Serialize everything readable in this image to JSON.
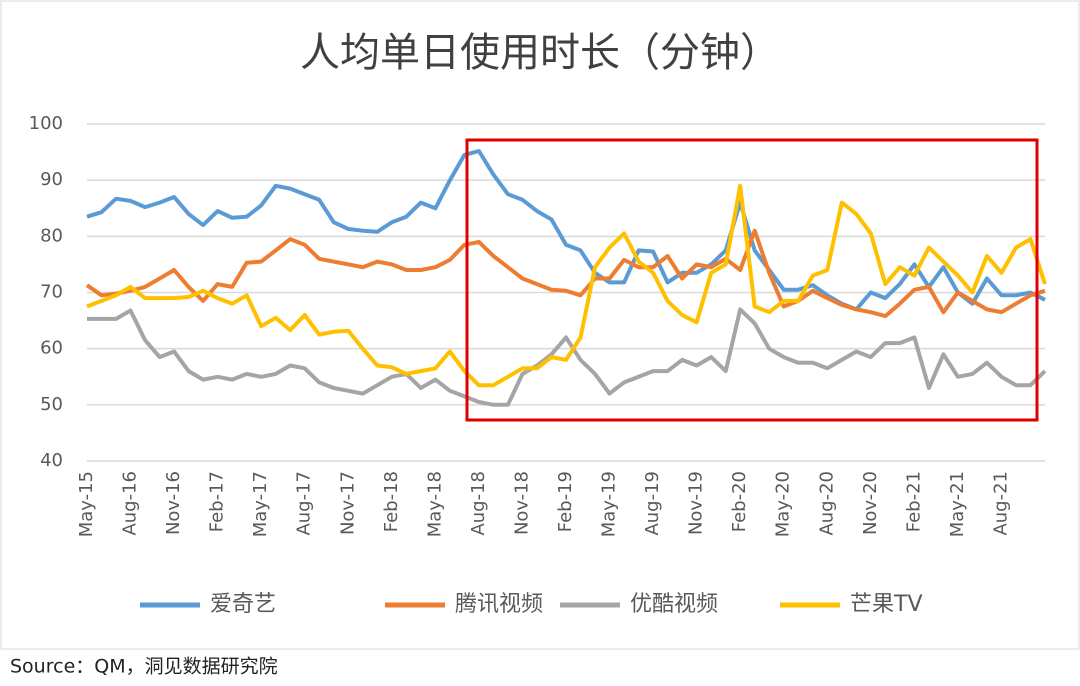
{
  "chart_data": {
    "type": "line",
    "title": "人均单日使用时长（分钟）",
    "source": "Source：QM，洞见数据研究院",
    "categories": [
      "May-15",
      null,
      null,
      "Aug-16",
      null,
      null,
      "Nov-16",
      null,
      null,
      "Feb-17",
      null,
      null,
      "May-17",
      null,
      null,
      "Aug-17",
      null,
      null,
      "Nov-17",
      null,
      null,
      "Feb-18",
      null,
      null,
      "May-18",
      null,
      null,
      "Aug-18",
      null,
      null,
      "Nov-18",
      null,
      null,
      "Feb-19",
      null,
      null,
      "May-19",
      null,
      null,
      "Aug-19",
      null,
      null,
      "Nov-19",
      null,
      null,
      "Feb-20",
      null,
      null,
      "May-20",
      null,
      null,
      "Aug-20",
      null,
      null,
      "Nov-20",
      null,
      null,
      "Feb-21",
      null,
      null,
      "May-21",
      null,
      null,
      "Aug-21",
      null,
      null,
      null
    ],
    "series": [
      {
        "name": "爱奇艺",
        "color": "#5b9bd5",
        "values": [
          83.5,
          84.3,
          86.7,
          86.3,
          85.2,
          86,
          87,
          84,
          82,
          84.5,
          83.3,
          83.5,
          85.5,
          89,
          88.5,
          87.5,
          86.5,
          82.5,
          81.3,
          81,
          80.8,
          82.5,
          83.5,
          86,
          85,
          90,
          94.5,
          95.2,
          91,
          87.5,
          86.5,
          84.5,
          83,
          78.5,
          77.5,
          73.5,
          71.8,
          71.8,
          77.5,
          77.3,
          71.8,
          73.5,
          73.5,
          75,
          77.5,
          86,
          77.5,
          74,
          70.5,
          70.5,
          71.3,
          69.5,
          68,
          67,
          70,
          69,
          71.5,
          75,
          71,
          74.5,
          70,
          68,
          72.5,
          69.5,
          69.5,
          70,
          68.7
        ]
      },
      {
        "name": "腾讯视频",
        "color": "#ed7d31",
        "values": [
          71.3,
          69.5,
          69.8,
          70.3,
          71,
          72.5,
          74,
          71,
          68.5,
          71.5,
          71,
          75.3,
          75.5,
          77.5,
          79.5,
          78.5,
          76,
          75.5,
          75,
          74.5,
          75.5,
          75,
          74,
          74,
          74.5,
          75.8,
          78.5,
          79,
          76.5,
          74.5,
          72.5,
          71.5,
          70.5,
          70.3,
          69.5,
          72.5,
          72.5,
          75.8,
          74.5,
          74.5,
          76.5,
          72.5,
          75,
          74.5,
          76,
          74,
          81,
          73.5,
          67.5,
          68.5,
          70.3,
          69,
          67.8,
          67,
          66.5,
          65.8,
          68,
          70.5,
          71,
          66.5,
          70,
          68.5,
          67,
          66.5,
          68,
          69.5,
          70.3
        ]
      },
      {
        "name": "优酷视频",
        "color": "#a5a5a5",
        "values": [
          65.3,
          65.3,
          65.3,
          66.8,
          61.5,
          58.5,
          59.5,
          56,
          54.5,
          55,
          54.5,
          55.5,
          55,
          55.5,
          57,
          56.5,
          54,
          53,
          52.5,
          52,
          53.5,
          55,
          55.5,
          53,
          54.5,
          52.5,
          51.5,
          50.5,
          50,
          50,
          55.5,
          57,
          59,
          62,
          58,
          55.5,
          52,
          54,
          55,
          56,
          56,
          58,
          57,
          58.5,
          56,
          67,
          64.5,
          60,
          58.5,
          57.5,
          57.5,
          56.5,
          58,
          59.5,
          58.5,
          61,
          61,
          62,
          53,
          59,
          55,
          55.5,
          57.5,
          55,
          53.5,
          53.5,
          56
        ]
      },
      {
        "name": "芒果TV",
        "color": "#ffc000",
        "values": [
          67.5,
          68.5,
          69.5,
          71,
          69,
          69,
          69,
          69.2,
          70.3,
          69,
          68,
          69.5,
          64,
          65.5,
          63.3,
          66,
          62.5,
          63,
          63.2,
          60,
          57,
          56.7,
          55.5,
          56,
          56.5,
          59.5,
          56,
          53.5,
          53.5,
          55,
          56.5,
          56.5,
          58.5,
          58,
          62,
          74.5,
          78,
          80.5,
          75.5,
          73.5,
          68.5,
          66,
          64.7,
          73.5,
          75,
          89,
          67.5,
          66.5,
          68.5,
          68.5,
          73,
          74,
          86,
          84,
          80.5,
          71.5,
          74.5,
          73,
          78,
          75.5,
          73,
          70,
          76.5,
          73.5,
          78,
          79.5,
          71.5
        ]
      }
    ],
    "ylim": [
      40,
      100
    ],
    "yticks": [
      40,
      50,
      60,
      70,
      80,
      90,
      100
    ],
    "grid": true,
    "legend": "bottom"
  }
}
